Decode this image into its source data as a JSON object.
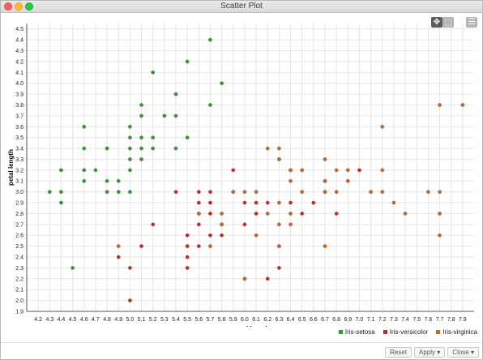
{
  "window": {
    "title": "Scatter Plot"
  },
  "toolbar": {
    "pan_icon": "move-icon",
    "zoom_icon": "zoom-box-icon",
    "menu_icon": "hamburger-menu-icon"
  },
  "buttons": {
    "reset": "Reset",
    "apply": "Apply ▾",
    "close": "Close ▾"
  },
  "chart_data": {
    "type": "scatter",
    "title": "",
    "xlabel": "sepal length",
    "ylabel": "petal length",
    "xlim": [
      4.1,
      8.0
    ],
    "ylim": [
      1.9,
      4.55
    ],
    "grid": true,
    "legend": "bottom-right",
    "x_ticks": [
      "4.2",
      "4.3",
      "4.4",
      "4.5",
      "4.6",
      "4.7",
      "4.8",
      "4.9",
      "5.0",
      "5.1",
      "5.2",
      "5.3",
      "5.4",
      "5.5",
      "5.6",
      "5.7",
      "5.8",
      "5.9",
      "6.0",
      "6.1",
      "6.2",
      "6.3",
      "6.4",
      "6.5",
      "6.6",
      "6.7",
      "6.8",
      "6.9",
      "7.0",
      "7.1",
      "7.2",
      "7.3",
      "7.4",
      "7.5",
      "7.6",
      "7.7",
      "7.8",
      "7.9"
    ],
    "y_ticks": [
      "1.9",
      "2.0",
      "2.1",
      "2.2",
      "2.3",
      "2.4",
      "2.5",
      "2.6",
      "2.7",
      "2.8",
      "2.9",
      "3.0",
      "3.1",
      "3.2",
      "3.3",
      "3.4",
      "3.5",
      "3.6",
      "3.7",
      "3.8",
      "3.9",
      "4.0",
      "4.1",
      "4.2",
      "4.3",
      "4.4",
      "4.5"
    ],
    "series": [
      {
        "name": "Iris-setosa",
        "color": "#2f9a2f",
        "points": [
          [
            4.3,
            3.0
          ],
          [
            4.4,
            3.2
          ],
          [
            4.4,
            3.0
          ],
          [
            4.4,
            2.9
          ],
          [
            4.5,
            2.3
          ],
          [
            4.6,
            3.6
          ],
          [
            4.6,
            3.4
          ],
          [
            4.6,
            3.2
          ],
          [
            4.6,
            3.1
          ],
          [
            4.7,
            3.2
          ],
          [
            4.8,
            3.4
          ],
          [
            4.8,
            3.1
          ],
          [
            4.8,
            3.0
          ],
          [
            4.9,
            3.1
          ],
          [
            4.9,
            3.0
          ],
          [
            5.0,
            3.6
          ],
          [
            5.0,
            3.5
          ],
          [
            5.0,
            3.4
          ],
          [
            5.0,
            3.3
          ],
          [
            5.0,
            3.2
          ],
          [
            5.0,
            3.0
          ],
          [
            5.1,
            3.8
          ],
          [
            5.1,
            3.7
          ],
          [
            5.1,
            3.5
          ],
          [
            5.1,
            3.4
          ],
          [
            5.1,
            3.3
          ],
          [
            5.2,
            4.1
          ],
          [
            5.2,
            3.5
          ],
          [
            5.2,
            3.4
          ],
          [
            5.3,
            3.7
          ],
          [
            5.4,
            3.9
          ],
          [
            5.4,
            3.7
          ],
          [
            5.4,
            3.4
          ],
          [
            5.5,
            4.2
          ],
          [
            5.5,
            3.5
          ],
          [
            5.7,
            4.4
          ],
          [
            5.7,
            3.8
          ],
          [
            5.8,
            4.0
          ]
        ]
      },
      {
        "name": "Iris-versicolor",
        "color": "#d62020",
        "points": [
          [
            4.9,
            2.4
          ],
          [
            5.0,
            2.3
          ],
          [
            5.0,
            2.0
          ],
          [
            5.1,
            2.5
          ],
          [
            5.2,
            2.7
          ],
          [
            5.4,
            3.0
          ],
          [
            5.5,
            2.6
          ],
          [
            5.5,
            2.5
          ],
          [
            5.5,
            2.4
          ],
          [
            5.5,
            2.3
          ],
          [
            5.6,
            3.0
          ],
          [
            5.6,
            2.9
          ],
          [
            5.6,
            2.8
          ],
          [
            5.6,
            2.7
          ],
          [
            5.6,
            2.5
          ],
          [
            5.7,
            3.0
          ],
          [
            5.7,
            2.9
          ],
          [
            5.7,
            2.8
          ],
          [
            5.7,
            2.6
          ],
          [
            5.8,
            2.7
          ],
          [
            5.8,
            2.6
          ],
          [
            5.9,
            3.2
          ],
          [
            5.9,
            3.0
          ],
          [
            6.0,
            2.9
          ],
          [
            6.0,
            2.7
          ],
          [
            6.0,
            2.2
          ],
          [
            6.1,
            2.9
          ],
          [
            6.1,
            2.8
          ],
          [
            6.2,
            2.9
          ],
          [
            6.2,
            2.2
          ],
          [
            6.3,
            3.3
          ],
          [
            6.3,
            2.5
          ],
          [
            6.3,
            2.3
          ],
          [
            6.4,
            2.9
          ],
          [
            6.4,
            3.2
          ],
          [
            6.5,
            2.8
          ],
          [
            6.6,
            2.9
          ],
          [
            6.7,
            3.0
          ],
          [
            6.7,
            3.1
          ],
          [
            6.8,
            2.8
          ],
          [
            6.9,
            3.1
          ],
          [
            7.0,
            3.2
          ]
        ]
      },
      {
        "name": "Iris-virginica",
        "color": "#c8652a",
        "points": [
          [
            4.9,
            2.5
          ],
          [
            5.6,
            2.8
          ],
          [
            5.7,
            2.5
          ],
          [
            5.8,
            2.8
          ],
          [
            5.8,
            2.7
          ],
          [
            5.9,
            3.0
          ],
          [
            6.0,
            3.0
          ],
          [
            6.0,
            2.2
          ],
          [
            6.1,
            3.0
          ],
          [
            6.1,
            2.6
          ],
          [
            6.2,
            3.4
          ],
          [
            6.2,
            2.8
          ],
          [
            6.3,
            3.4
          ],
          [
            6.3,
            3.3
          ],
          [
            6.3,
            2.9
          ],
          [
            6.3,
            2.7
          ],
          [
            6.3,
            2.5
          ],
          [
            6.4,
            3.2
          ],
          [
            6.4,
            3.1
          ],
          [
            6.4,
            2.8
          ],
          [
            6.4,
            2.7
          ],
          [
            6.5,
            3.2
          ],
          [
            6.5,
            3.0
          ],
          [
            6.7,
            3.3
          ],
          [
            6.7,
            3.1
          ],
          [
            6.7,
            3.0
          ],
          [
            6.7,
            2.5
          ],
          [
            6.8,
            3.2
          ],
          [
            6.8,
            3.0
          ],
          [
            6.9,
            3.2
          ],
          [
            6.9,
            3.1
          ],
          [
            7.1,
            3.0
          ],
          [
            7.2,
            3.6
          ],
          [
            7.2,
            3.2
          ],
          [
            7.2,
            3.0
          ],
          [
            7.3,
            2.9
          ],
          [
            7.4,
            2.8
          ],
          [
            7.6,
            3.0
          ],
          [
            7.7,
            3.8
          ],
          [
            7.7,
            3.0
          ],
          [
            7.7,
            2.8
          ],
          [
            7.7,
            2.6
          ],
          [
            7.9,
            3.8
          ]
        ]
      }
    ]
  }
}
